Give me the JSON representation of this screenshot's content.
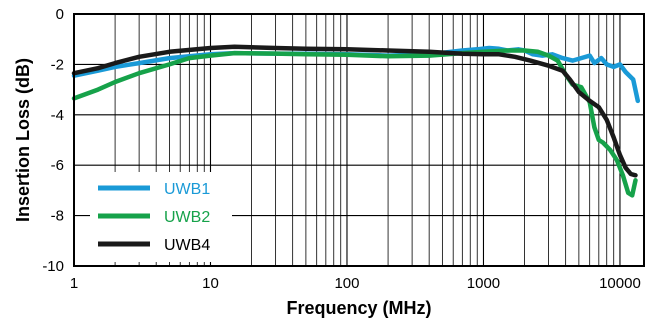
{
  "chart_data": {
    "type": "line",
    "xlabel": "Frequency (MHz)",
    "ylabel": "Insertion Loss (dB)",
    "xscale": "log",
    "xlim": [
      1,
      15000
    ],
    "ylim": [
      -10,
      0
    ],
    "grid": true,
    "legend_position": "bottom-left",
    "x_ticks": [
      {
        "value": 1,
        "label": "1"
      },
      {
        "value": 10,
        "label": "10"
      },
      {
        "value": 100,
        "label": "100"
      },
      {
        "value": 1000,
        "label": "1000"
      },
      {
        "value": 10000,
        "label": "10000"
      }
    ],
    "y_ticks": [
      {
        "value": 0,
        "label": "0"
      },
      {
        "value": -2,
        "label": "-2"
      },
      {
        "value": -4,
        "label": "-4"
      },
      {
        "value": -6,
        "label": "-6"
      },
      {
        "value": -8,
        "label": "-8"
      },
      {
        "value": -10,
        "label": "-10"
      }
    ],
    "series": [
      {
        "name": "UWB1",
        "color": "#1a9ad7",
        "label_color": "#1a9ad7",
        "points": [
          [
            1,
            -2.45
          ],
          [
            1.5,
            -2.25
          ],
          [
            2,
            -2.1
          ],
          [
            3,
            -1.95
          ],
          [
            5,
            -1.75
          ],
          [
            10,
            -1.6
          ],
          [
            15,
            -1.55
          ],
          [
            30,
            -1.57
          ],
          [
            50,
            -1.58
          ],
          [
            100,
            -1.6
          ],
          [
            200,
            -1.65
          ],
          [
            400,
            -1.6
          ],
          [
            700,
            -1.45
          ],
          [
            900,
            -1.4
          ],
          [
            1100,
            -1.35
          ],
          [
            1300,
            -1.38
          ],
          [
            1500,
            -1.45
          ],
          [
            1800,
            -1.4
          ],
          [
            2000,
            -1.45
          ],
          [
            2300,
            -1.6
          ],
          [
            2700,
            -1.65
          ],
          [
            3200,
            -1.6
          ],
          [
            3800,
            -1.75
          ],
          [
            4500,
            -1.85
          ],
          [
            5200,
            -1.75
          ],
          [
            6000,
            -1.65
          ],
          [
            6500,
            -1.95
          ],
          [
            7300,
            -1.75
          ],
          [
            8000,
            -2.0
          ],
          [
            9000,
            -2.1
          ],
          [
            10000,
            -2.0
          ],
          [
            11000,
            -2.3
          ],
          [
            12500,
            -2.6
          ],
          [
            13500,
            -3.45
          ]
        ]
      },
      {
        "name": "UWB2",
        "color": "#16a24a",
        "label_color": "#16a24a",
        "points": [
          [
            1,
            -3.35
          ],
          [
            1.5,
            -3.0
          ],
          [
            2,
            -2.7
          ],
          [
            3,
            -2.35
          ],
          [
            5,
            -2.0
          ],
          [
            7,
            -1.75
          ],
          [
            10,
            -1.65
          ],
          [
            15,
            -1.55
          ],
          [
            30,
            -1.57
          ],
          [
            50,
            -1.6
          ],
          [
            100,
            -1.62
          ],
          [
            200,
            -1.68
          ],
          [
            400,
            -1.65
          ],
          [
            700,
            -1.55
          ],
          [
            1000,
            -1.5
          ],
          [
            1500,
            -1.45
          ],
          [
            2000,
            -1.45
          ],
          [
            2500,
            -1.5
          ],
          [
            3000,
            -1.65
          ],
          [
            3500,
            -1.85
          ],
          [
            4000,
            -2.4
          ],
          [
            4500,
            -2.8
          ],
          [
            5200,
            -2.9
          ],
          [
            6000,
            -3.5
          ],
          [
            6500,
            -4.5
          ],
          [
            7000,
            -5.0
          ],
          [
            7500,
            -5.1
          ],
          [
            8500,
            -5.4
          ],
          [
            9500,
            -5.8
          ],
          [
            10500,
            -6.4
          ],
          [
            11500,
            -7.1
          ],
          [
            12300,
            -7.2
          ],
          [
            13000,
            -6.6
          ]
        ]
      },
      {
        "name": "UWB4",
        "color": "#1a1a1a",
        "label_color": "#000000",
        "points": [
          [
            1,
            -2.35
          ],
          [
            1.5,
            -2.15
          ],
          [
            2,
            -1.95
          ],
          [
            3,
            -1.7
          ],
          [
            5,
            -1.5
          ],
          [
            10,
            -1.35
          ],
          [
            15,
            -1.3
          ],
          [
            30,
            -1.35
          ],
          [
            50,
            -1.38
          ],
          [
            100,
            -1.4
          ],
          [
            200,
            -1.45
          ],
          [
            400,
            -1.5
          ],
          [
            700,
            -1.58
          ],
          [
            1000,
            -1.6
          ],
          [
            1300,
            -1.6
          ],
          [
            1700,
            -1.7
          ],
          [
            2200,
            -1.85
          ],
          [
            3000,
            -2.05
          ],
          [
            3800,
            -2.25
          ],
          [
            4300,
            -2.6
          ],
          [
            5000,
            -3.1
          ],
          [
            6000,
            -3.45
          ],
          [
            7000,
            -3.7
          ],
          [
            8000,
            -4.2
          ],
          [
            9000,
            -4.9
          ],
          [
            10000,
            -5.6
          ],
          [
            11000,
            -6.1
          ],
          [
            12000,
            -6.35
          ],
          [
            13000,
            -6.4
          ]
        ]
      }
    ]
  }
}
